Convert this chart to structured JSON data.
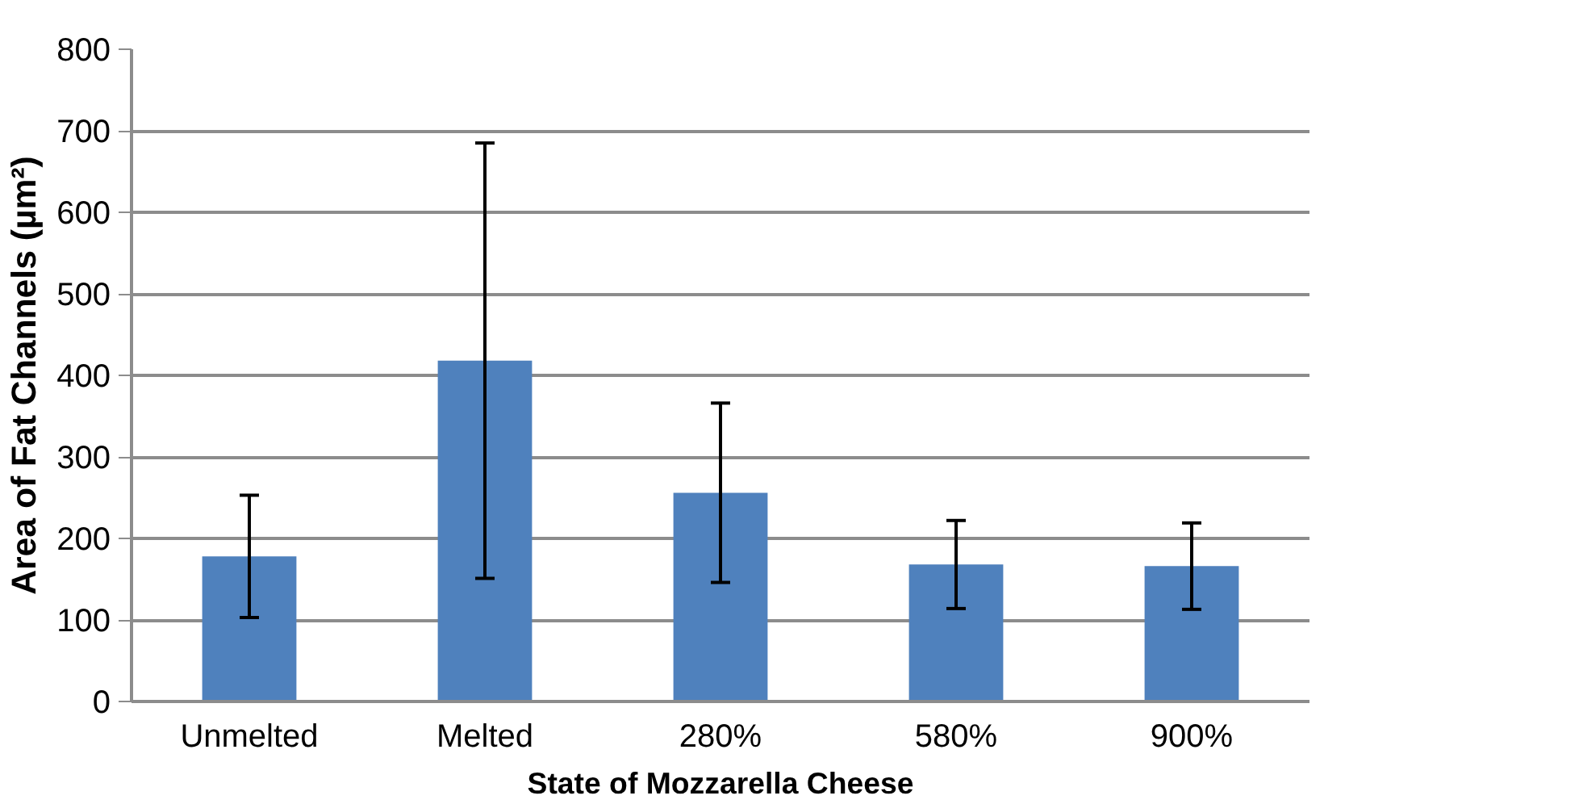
{
  "chart_data": {
    "type": "bar",
    "xlabel": "State of Mozzarella Cheese",
    "ylabel": "Area of Fat Channels (µm²)",
    "categories": [
      "Unmelted",
      "Melted",
      "280%",
      "580%",
      "900%"
    ],
    "values": [
      178,
      418,
      256,
      168,
      166
    ],
    "errors": [
      75,
      267,
      110,
      54,
      53
    ],
    "color": "#4f81bd",
    "ylim": [
      0,
      800
    ],
    "yticks": [
      0,
      100,
      200,
      300,
      400,
      500,
      600,
      700,
      800
    ],
    "grid": "y"
  }
}
